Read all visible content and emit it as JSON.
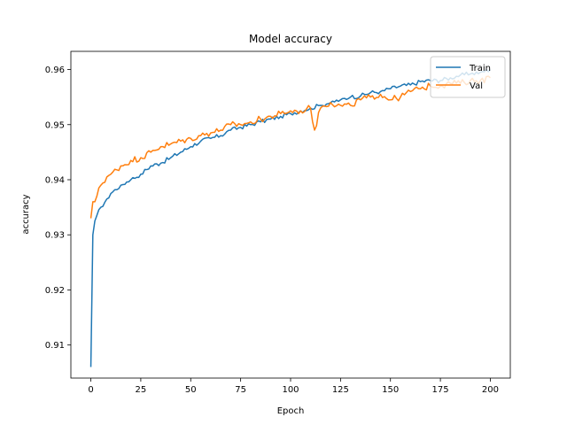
{
  "chart_data": {
    "type": "line",
    "title": "Model accuracy",
    "xlabel": "Epoch",
    "ylabel": "accuracy",
    "xlim": [
      -10,
      210
    ],
    "ylim": [
      0.904,
      0.9633
    ],
    "x_ticks": [
      0,
      25,
      50,
      75,
      100,
      125,
      150,
      175,
      200
    ],
    "y_ticks": [
      0.91,
      0.92,
      0.93,
      0.94,
      0.95,
      0.96
    ],
    "grid": false,
    "legend_position": "top-right",
    "series": [
      {
        "name": "Train",
        "color": "#1f77b4",
        "x": [
          0,
          1,
          2,
          3,
          5,
          8,
          10,
          15,
          20,
          25,
          30,
          35,
          40,
          45,
          50,
          55,
          60,
          65,
          70,
          75,
          80,
          85,
          90,
          95,
          100,
          105,
          110,
          115,
          120,
          125,
          130,
          135,
          140,
          145,
          150,
          155,
          160,
          165,
          170,
          175,
          180,
          185,
          190,
          195,
          200
        ],
        "values": [
          0.906,
          0.93,
          0.9325,
          0.9335,
          0.935,
          0.9365,
          0.9375,
          0.939,
          0.94,
          0.941,
          0.9425,
          0.943,
          0.944,
          0.945,
          0.946,
          0.947,
          0.9475,
          0.948,
          0.949,
          0.9495,
          0.95,
          0.9505,
          0.951,
          0.9515,
          0.952,
          0.9525,
          0.953,
          0.9535,
          0.954,
          0.9545,
          0.955,
          0.9552,
          0.9558,
          0.956,
          0.9565,
          0.957,
          0.9572,
          0.9578,
          0.958,
          0.958,
          0.9585,
          0.959,
          0.9592,
          0.9595,
          0.96
        ]
      },
      {
        "name": "Val",
        "color": "#ff7f0e",
        "x": [
          0,
          1,
          2,
          3,
          5,
          8,
          10,
          15,
          20,
          25,
          30,
          35,
          40,
          45,
          50,
          55,
          60,
          65,
          70,
          75,
          80,
          85,
          90,
          95,
          100,
          105,
          110,
          112,
          115,
          120,
          125,
          130,
          135,
          140,
          145,
          150,
          155,
          160,
          165,
          170,
          175,
          180,
          185,
          190,
          195,
          200
        ],
        "values": [
          0.933,
          0.936,
          0.936,
          0.937,
          0.939,
          0.9405,
          0.941,
          0.9425,
          0.9435,
          0.944,
          0.945,
          0.946,
          0.9465,
          0.947,
          0.9475,
          0.948,
          0.9485,
          0.949,
          0.95,
          0.95,
          0.9505,
          0.951,
          0.9515,
          0.952,
          0.9525,
          0.9525,
          0.953,
          0.949,
          0.953,
          0.954,
          0.9535,
          0.9535,
          0.9545,
          0.955,
          0.9555,
          0.9545,
          0.955,
          0.956,
          0.9565,
          0.957,
          0.957,
          0.9575,
          0.9575,
          0.958,
          0.958,
          0.9585
        ]
      }
    ]
  }
}
